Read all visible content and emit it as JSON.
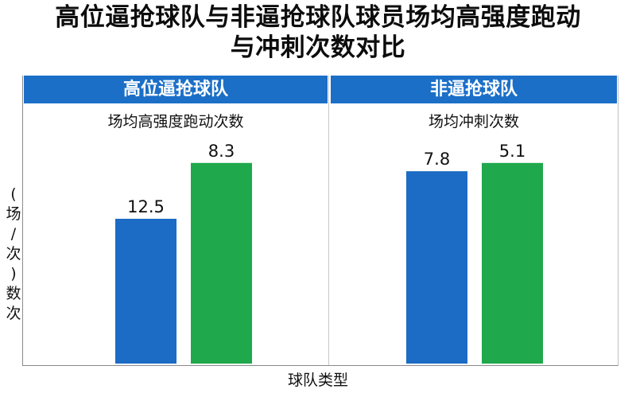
{
  "title_lines": [
    "高位逼抢球队与非逼抢球队球员场均高强度跑动",
    "与冲刺次数对比"
  ],
  "panels": [
    {
      "header": "高位逼抢球队",
      "subtitle": "场均高强度跑动次数"
    },
    {
      "header": "非逼抢球队",
      "subtitle": "场均冲刺次数"
    }
  ],
  "colors": {
    "blue": "#1c6bc4",
    "green": "#1fa84c",
    "header": "#1b6fc7"
  },
  "chart_data": {
    "type": "bar",
    "title": "高位逼抢球队与非逼抢球队球员场均高强度跑动与冲刺次数对比",
    "xlabel": "球队类型",
    "ylabel": "数次 (场/次)",
    "ylabel_chars": [
      "(",
      "场",
      "/",
      "次",
      ")",
      "数",
      "次"
    ],
    "groups": [
      {
        "name": "高位逼抢球队",
        "subtitle": "场均高强度跑动次数",
        "bars": [
          {
            "value": 12.5,
            "label": "12.5",
            "color": "#1c6bc4",
            "relative_height": 0.7
          },
          {
            "value": 8.3,
            "label": "8.3",
            "color": "#1fa84c",
            "relative_height": 0.97
          }
        ]
      },
      {
        "name": "非逼抢球队",
        "subtitle": "场均冲刺次数",
        "bars": [
          {
            "value": 7.8,
            "label": "7.8",
            "color": "#1c6bc4",
            "relative_height": 0.93
          },
          {
            "value": 5.1,
            "label": "5.1",
            "color": "#1fa84c",
            "relative_height": 0.97
          }
        ]
      }
    ]
  }
}
